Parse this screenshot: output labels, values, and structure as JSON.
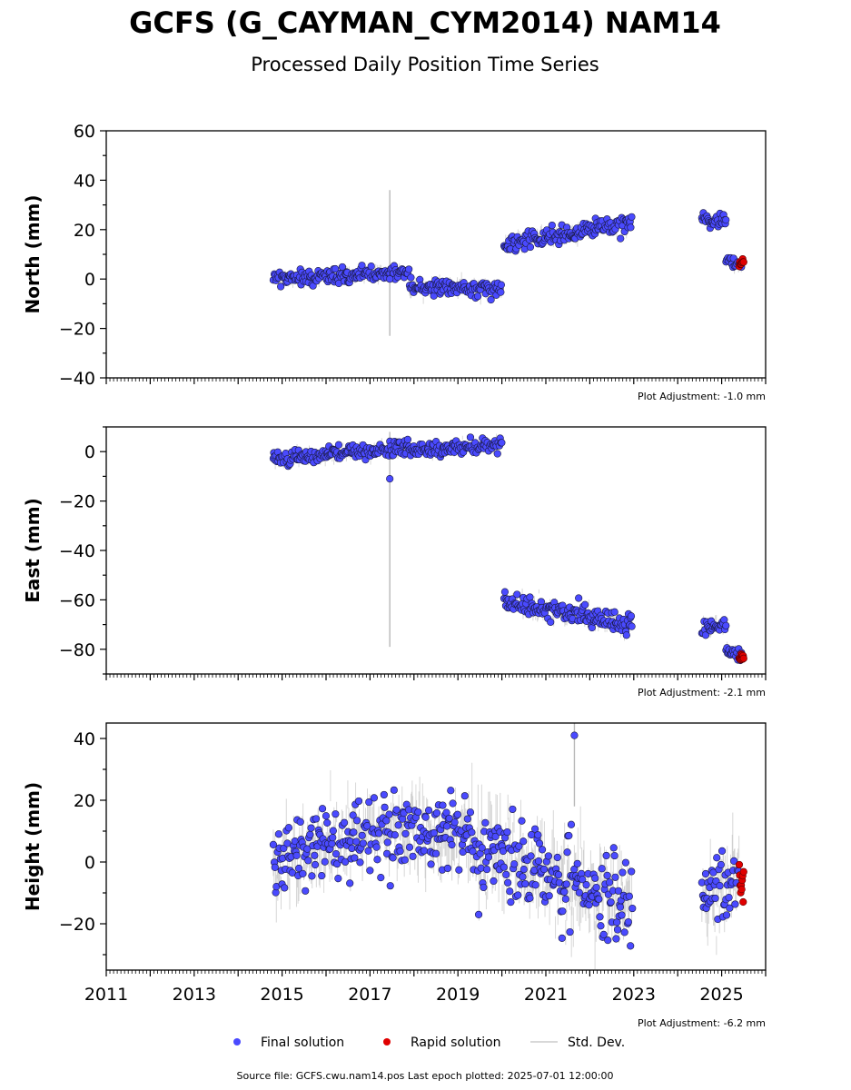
{
  "title": "GCFS (G_CAYMAN_CYM2014) NAM14",
  "subtitle": "Processed Daily Position Time Series",
  "source_note": "Source file: GCFS.cwu.nam14.pos  Last epoch plotted: 2025-07-01 12:00:00",
  "legend": [
    {
      "label": "Final solution",
      "color": "#4a4aff",
      "marker": "circle"
    },
    {
      "label": "Rapid solution",
      "color": "#e00000",
      "marker": "circle"
    },
    {
      "label": "Std. Dev.",
      "color": "#cccccc",
      "marker": "line"
    }
  ],
  "colors": {
    "final": "#4a4aff",
    "rapid": "#e00000",
    "stddev": "#b8b8b8",
    "edge": "#1a1a40"
  },
  "chart_data": [
    {
      "type": "scatter",
      "ylabel": "North (mm)",
      "adjustment": "Plot Adjustment: -1.0 mm",
      "xlim": [
        2011,
        2026
      ],
      "ylim": [
        -40,
        60
      ],
      "yticks": [
        -40,
        -20,
        0,
        20,
        40,
        60
      ],
      "xticks": [
        2011,
        2013,
        2015,
        2017,
        2019,
        2021,
        2023,
        2025
      ],
      "show_xtick_labels": false,
      "segments": [
        {
          "start": 2014.8,
          "end": 2017.9,
          "y0": 0,
          "y1": 3,
          "noise": 1.5
        },
        {
          "start": 2017.9,
          "end": 2020.0,
          "y0": -3,
          "y1": -4,
          "noise": 1.6
        },
        {
          "start": 2020.05,
          "end": 2022.97,
          "y0": 14,
          "y1": 23,
          "noise": 1.8
        },
        {
          "start": 2024.55,
          "end": 2025.1,
          "y0": 24,
          "y1": 23,
          "noise": 1.3
        },
        {
          "start": 2025.1,
          "end": 2025.45,
          "y0": 8,
          "y1": 5,
          "noise": 1.2
        }
      ],
      "rapid": {
        "start": 2025.4,
        "end": 2025.5,
        "y0": 6,
        "y1": 7,
        "noise": 0.8
      },
      "spike": {
        "x": 2017.45,
        "ymin": -23,
        "ymax": 36,
        "y": 0
      }
    },
    {
      "type": "scatter",
      "ylabel": "East (mm)",
      "adjustment": "Plot Adjustment: -2.1 mm",
      "xlim": [
        2011,
        2026
      ],
      "ylim": [
        -90,
        10
      ],
      "yticks": [
        -80,
        -60,
        -40,
        -20,
        0
      ],
      "xticks": [
        2011,
        2013,
        2015,
        2017,
        2019,
        2021,
        2023,
        2025
      ],
      "show_xtick_labels": false,
      "segments": [
        {
          "start": 2014.8,
          "end": 2017.9,
          "y0": -3,
          "y1": 2,
          "noise": 1.5
        },
        {
          "start": 2017.9,
          "end": 2020.0,
          "y0": 0,
          "y1": 3,
          "noise": 1.3
        },
        {
          "start": 2020.05,
          "end": 2022.97,
          "y0": -61,
          "y1": -70,
          "noise": 1.8
        },
        {
          "start": 2024.55,
          "end": 2025.1,
          "y0": -72,
          "y1": -70,
          "noise": 1.6
        },
        {
          "start": 2025.1,
          "end": 2025.45,
          "y0": -80,
          "y1": -83,
          "noise": 1.2
        }
      ],
      "rapid": {
        "start": 2025.4,
        "end": 2025.5,
        "y0": -83,
        "y1": -84,
        "noise": 0.8
      },
      "spike": {
        "x": 2017.45,
        "ymin": -79,
        "ymax": 8,
        "y": -11
      }
    },
    {
      "type": "scatter",
      "ylabel": "Height (mm)",
      "adjustment": "Plot Adjustment: -6.2 mm",
      "xlim": [
        2011,
        2026
      ],
      "ylim": [
        -35,
        45
      ],
      "yticks": [
        -20,
        0,
        20,
        40
      ],
      "xticks": [
        2011,
        2013,
        2015,
        2017,
        2019,
        2021,
        2023,
        2025
      ],
      "xtick_labels": [
        "2011",
        "2013",
        "2015",
        "2017",
        "2019",
        "2021",
        "2023",
        "2025"
      ],
      "show_xtick_labels": true,
      "segments": [
        {
          "start": 2014.8,
          "end": 2017.2,
          "y0": 0,
          "y1": 9,
          "noise": 6
        },
        {
          "start": 2017.2,
          "end": 2019.3,
          "y0": 10,
          "y1": 10,
          "noise": 6
        },
        {
          "start": 2019.3,
          "end": 2022.97,
          "y0": 6,
          "y1": -15,
          "noise": 7
        },
        {
          "start": 2024.55,
          "end": 2025.4,
          "y0": -12,
          "y1": -4,
          "noise": 6
        }
      ],
      "rapid": {
        "start": 2025.4,
        "end": 2025.5,
        "y0": -4,
        "y1": -8,
        "noise": 3
      },
      "spike": {
        "x": 2021.65,
        "ymin": 18,
        "ymax": 45,
        "y": 41
      }
    }
  ]
}
